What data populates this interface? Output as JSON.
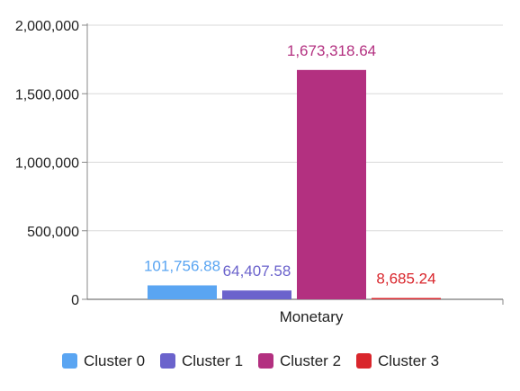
{
  "chart_data": {
    "type": "bar",
    "categories": [
      "Monetary"
    ],
    "series": [
      {
        "name": "Cluster 0",
        "values": [
          101756.88
        ],
        "label": "101,756.88",
        "color": "#5aa5f2"
      },
      {
        "name": "Cluster 1",
        "values": [
          64407.58
        ],
        "label": "64,407.58",
        "color": "#6b63cc"
      },
      {
        "name": "Cluster 2",
        "values": [
          1673318.64
        ],
        "label": "1,673,318.64",
        "color": "#b33080"
      },
      {
        "name": "Cluster 3",
        "values": [
          8685.24
        ],
        "label": "8,685.24",
        "color": "#d9262c"
      }
    ],
    "y_ticks": [
      0,
      500000,
      1000000,
      1500000,
      2000000
    ],
    "y_tick_labels": [
      "0",
      "500,000",
      "1,000,000",
      "1,500,000",
      "2,000,000"
    ],
    "ylim": [
      0,
      2000000
    ],
    "grid": true,
    "legend_position": "bottom",
    "title": "",
    "xlabel": "",
    "ylabel": ""
  }
}
